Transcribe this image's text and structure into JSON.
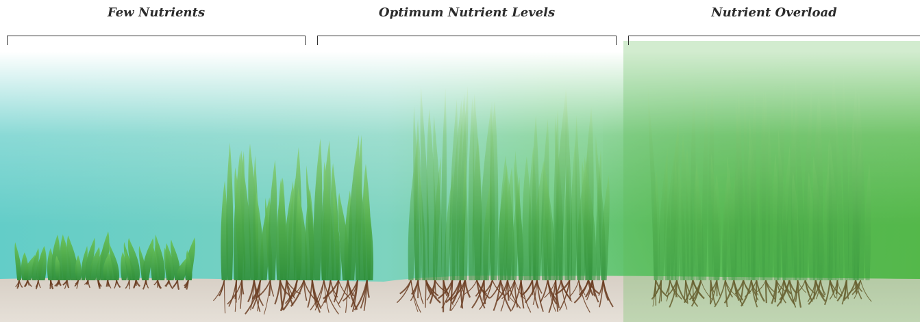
{
  "panels": [
    {
      "label": "Few Nutrients"
    },
    {
      "label": "Optimum Nutrient Levels"
    },
    {
      "label": "Nutrient Overload"
    }
  ],
  "colors": {
    "water_top": "#f4faf8",
    "water_teal": "#5fcbc6",
    "water_green": "#6cc96a",
    "overload_green": "#4cb444",
    "sediment": "#cfc6bc",
    "plant": "#4fae48",
    "root": "#6b3d22"
  }
}
